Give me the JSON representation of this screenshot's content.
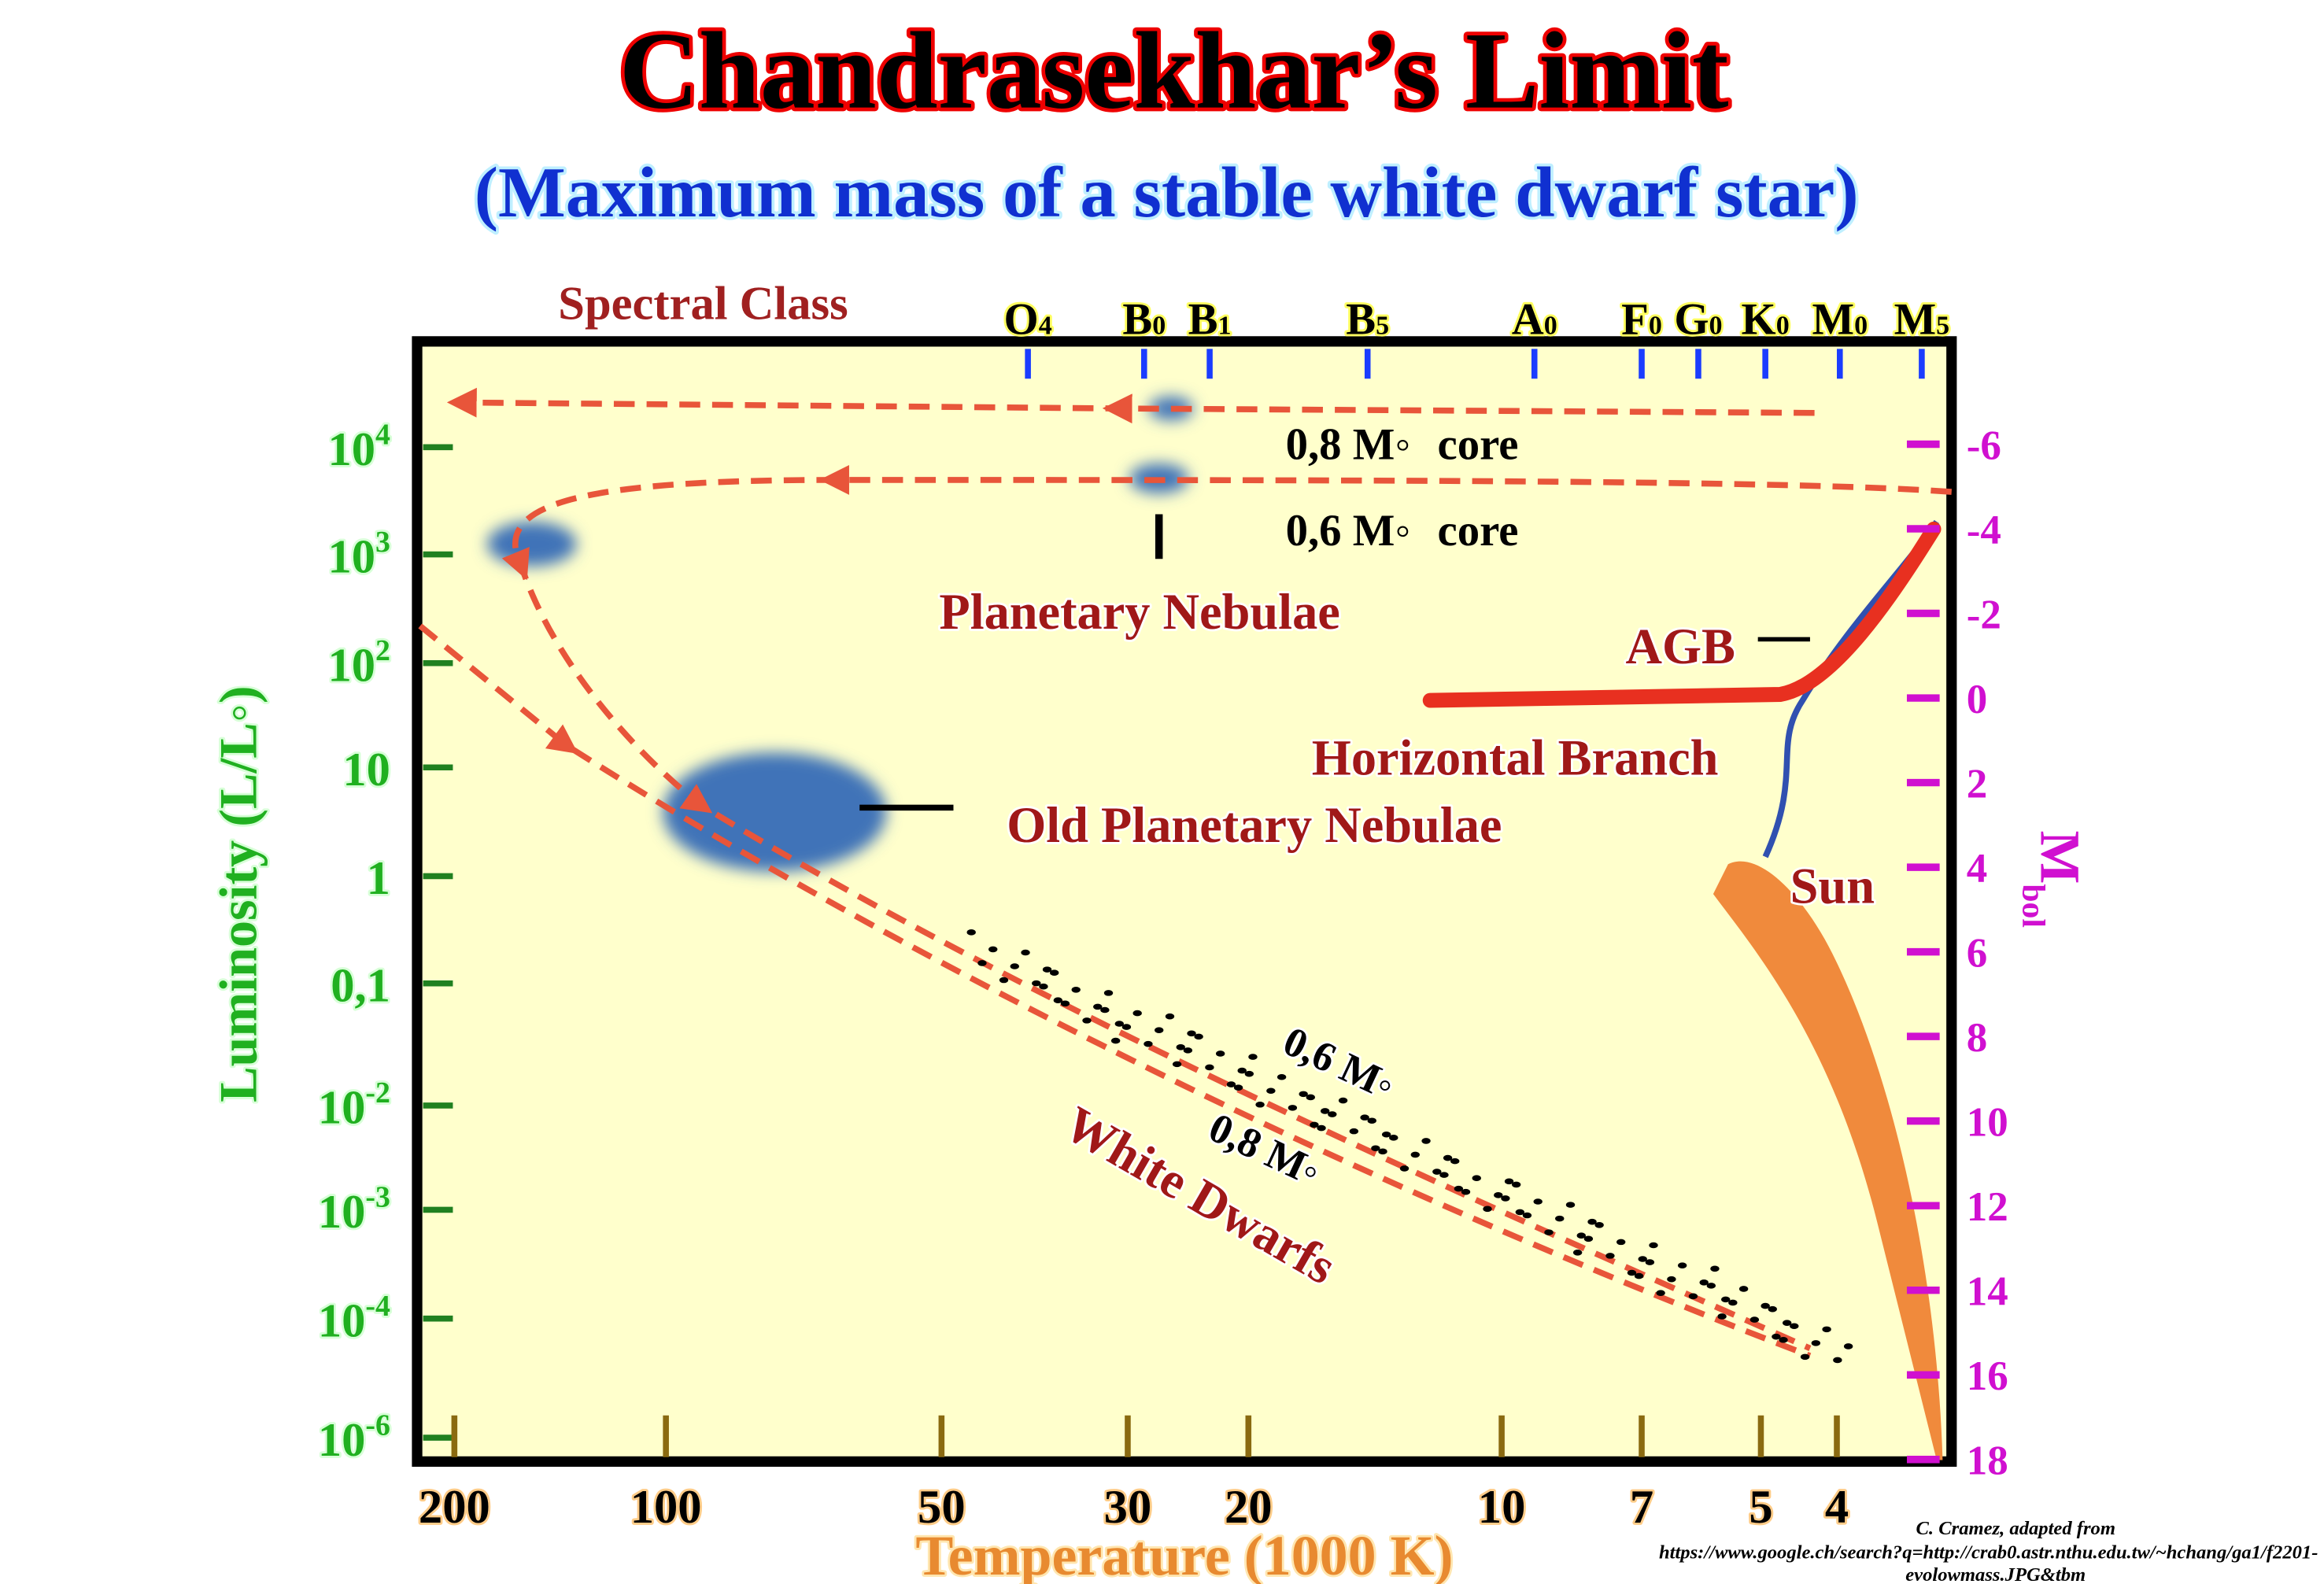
{
  "header": {
    "title": "Chandrasekhar’s Limit",
    "subtitle": "(Maximum mass of a stable white dwarf star)"
  },
  "spectral_class": {
    "label": "Spectral Class",
    "classes": [
      {
        "letter": "O",
        "num": "4"
      },
      {
        "letter": "B",
        "num": "0"
      },
      {
        "letter": "B",
        "num": "1"
      },
      {
        "letter": "B",
        "num": "5"
      },
      {
        "letter": "A",
        "num": "0"
      },
      {
        "letter": "F",
        "num": "0"
      },
      {
        "letter": "G",
        "num": "0"
      },
      {
        "letter": "K",
        "num": "0"
      },
      {
        "letter": "M",
        "num": "0"
      },
      {
        "letter": "M",
        "num": "5"
      }
    ]
  },
  "luminosity_axis": {
    "label": "Luminosity (L/L◦)",
    "ticks": [
      {
        "base": "10",
        "exp": "4"
      },
      {
        "base": "10",
        "exp": "3"
      },
      {
        "base": "10",
        "exp": "2"
      },
      {
        "base": "10"
      },
      {
        "base": "1"
      },
      {
        "base": "0,1"
      },
      {
        "base": "10",
        "exp": "-2"
      },
      {
        "base": "10",
        "exp": "-3"
      },
      {
        "base": "10",
        "exp": "-4"
      },
      {
        "base": "10",
        "exp": "-6"
      }
    ]
  },
  "temperature_axis": {
    "label": "Temperature (1000 K)",
    "ticks": [
      "200",
      "100",
      "50",
      "30",
      "20",
      "10",
      "7",
      "5",
      "4"
    ]
  },
  "mbol_axis": {
    "label": {
      "base": "M",
      "sub": "bol"
    },
    "ticks": [
      "-6",
      "-4",
      "-2",
      "0",
      "2",
      "4",
      "6",
      "8",
      "10",
      "12",
      "14",
      "16",
      "18"
    ]
  },
  "annotations": {
    "core_08": {
      "mass": "0,8 M◦",
      "text": "core"
    },
    "core_06": {
      "mass": "0,6 M◦",
      "text": "core"
    },
    "planetary_nebulae": "Planetary Nebulae",
    "agb": "AGB",
    "horizontal_branch": "Horizontal Branch",
    "old_planetary_nebulae": "Old Planetary Nebulae",
    "sun": "Sun",
    "track_06": "0,6 M◦",
    "track_08": "0,8 M◦",
    "white_dwarfs": "White Dwarfs"
  },
  "credit": [
    "C. Cramez, adapted from",
    "https://www.google.ch/search?q=http://crab0.astr.nthu.edu.tw/~hchang/ga1/f2201-",
    "evolowmass.JPG&tbm"
  ]
}
